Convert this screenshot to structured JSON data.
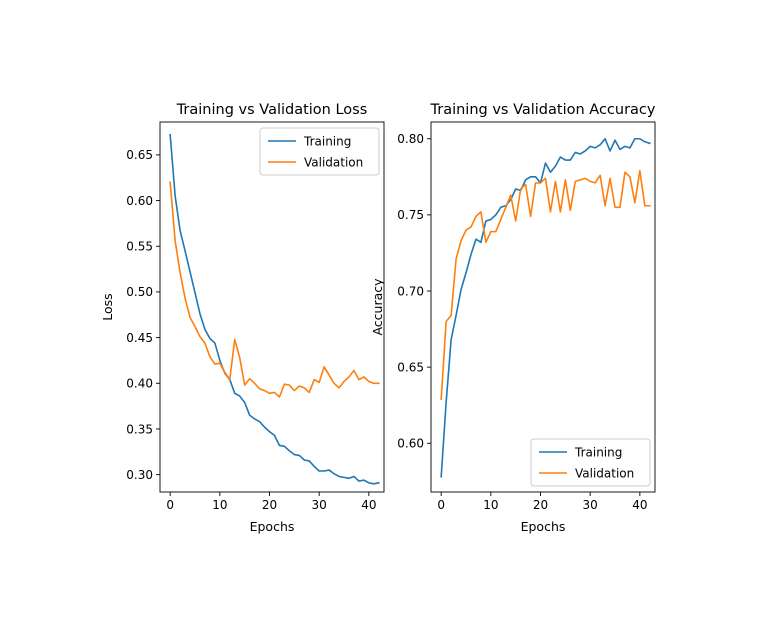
{
  "chart_data": [
    {
      "type": "line",
      "title": "Training vs Validation Loss",
      "xlabel": "Epochs",
      "ylabel": "Loss",
      "xlim": [
        -2.05,
        43.05
      ],
      "ylim": [
        0.281,
        0.686
      ],
      "xticks": [
        0,
        10,
        20,
        30,
        40
      ],
      "yticks": [
        0.3,
        0.35,
        0.4,
        0.45,
        0.5,
        0.55,
        0.6,
        0.65
      ],
      "ytick_labels": [
        "0.30",
        "0.35",
        "0.40",
        "0.45",
        "0.50",
        "0.55",
        "0.60",
        "0.65"
      ],
      "grid": false,
      "legend_position": "upper right",
      "series": [
        {
          "name": "Training",
          "color": "#1f77b4",
          "values": [
            0.672,
            0.605,
            0.567,
            0.545,
            0.522,
            0.499,
            0.476,
            0.459,
            0.449,
            0.444,
            0.425,
            0.411,
            0.404,
            0.389,
            0.386,
            0.379,
            0.365,
            0.361,
            0.358,
            0.352,
            0.347,
            0.343,
            0.332,
            0.331,
            0.326,
            0.322,
            0.321,
            0.316,
            0.315,
            0.309,
            0.304,
            0.304,
            0.305,
            0.301,
            0.298,
            0.297,
            0.296,
            0.298,
            0.293,
            0.294,
            0.291,
            0.29,
            0.291
          ]
        },
        {
          "name": "Validation",
          "color": "#ff7f0e",
          "values": [
            0.62,
            0.556,
            0.521,
            0.493,
            0.472,
            0.462,
            0.451,
            0.444,
            0.429,
            0.421,
            0.422,
            0.412,
            0.404,
            0.448,
            0.428,
            0.398,
            0.405,
            0.4,
            0.394,
            0.392,
            0.389,
            0.39,
            0.385,
            0.399,
            0.398,
            0.392,
            0.397,
            0.395,
            0.39,
            0.404,
            0.401,
            0.418,
            0.409,
            0.4,
            0.395,
            0.402,
            0.407,
            0.414,
            0.404,
            0.407,
            0.402,
            0.4,
            0.4
          ]
        }
      ]
    },
    {
      "type": "line",
      "title": "Training vs Validation Accuracy",
      "xlabel": "Epochs",
      "ylabel": "Accuracy",
      "xlim": [
        -2.05,
        43.05
      ],
      "ylim": [
        0.568,
        0.811
      ],
      "xticks": [
        0,
        10,
        20,
        30,
        40
      ],
      "yticks": [
        0.6,
        0.65,
        0.7,
        0.75,
        0.8
      ],
      "ytick_labels": [
        "0.60",
        "0.65",
        "0.70",
        "0.75",
        "0.80"
      ],
      "grid": false,
      "legend_position": "lower right",
      "series": [
        {
          "name": "Training",
          "color": "#1f77b4",
          "values": [
            0.578,
            0.627,
            0.668,
            0.684,
            0.701,
            0.712,
            0.724,
            0.734,
            0.732,
            0.746,
            0.747,
            0.75,
            0.755,
            0.756,
            0.76,
            0.767,
            0.766,
            0.773,
            0.775,
            0.775,
            0.771,
            0.784,
            0.778,
            0.782,
            0.788,
            0.786,
            0.786,
            0.791,
            0.79,
            0.792,
            0.795,
            0.794,
            0.796,
            0.8,
            0.792,
            0.799,
            0.793,
            0.795,
            0.794,
            0.8,
            0.8,
            0.798,
            0.797
          ]
        },
        {
          "name": "Validation",
          "color": "#ff7f0e",
          "values": [
            0.629,
            0.68,
            0.684,
            0.721,
            0.733,
            0.74,
            0.742,
            0.749,
            0.752,
            0.732,
            0.739,
            0.739,
            0.747,
            0.755,
            0.763,
            0.746,
            0.767,
            0.77,
            0.749,
            0.771,
            0.771,
            0.774,
            0.752,
            0.772,
            0.752,
            0.773,
            0.753,
            0.772,
            0.773,
            0.774,
            0.772,
            0.771,
            0.776,
            0.756,
            0.774,
            0.755,
            0.755,
            0.778,
            0.775,
            0.758,
            0.779,
            0.756,
            0.756
          ]
        }
      ]
    }
  ]
}
